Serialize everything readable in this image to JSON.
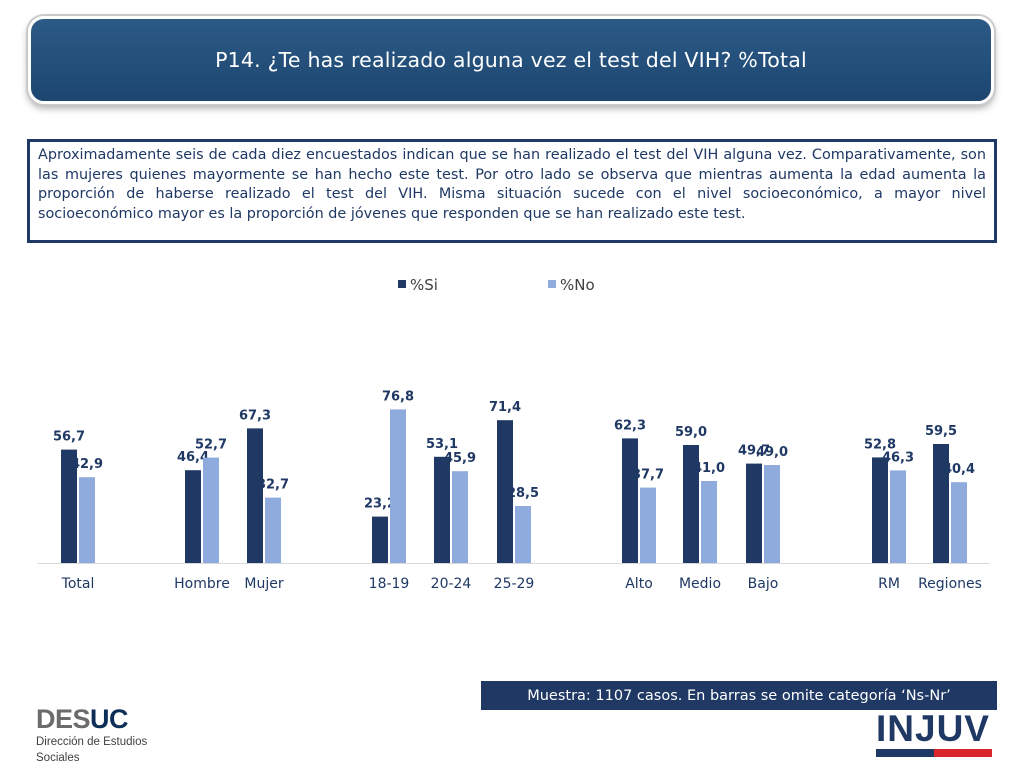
{
  "header": {
    "title": "P14. ¿Te has realizado alguna vez el test del VIH? %Total"
  },
  "summary": {
    "text": "Aproximadamente seis de cada diez encuestados indican que se han realizado el test del VIH alguna vez. Comparativamente, son las mujeres quienes mayormente se han hecho este test. Por otro lado se observa que mientras aumenta la edad aumenta la proporción de haberse realizado el test del VIH. Misma situación sucede con el nivel socioeconómico, a mayor nivel socioeconómico mayor es la proporción de jóvenes que responden que se han realizado este test."
  },
  "chart_data": {
    "type": "bar",
    "title": "",
    "xlabel": "",
    "ylabel": "",
    "ylim": [
      0,
      100
    ],
    "grid": false,
    "legend_position": "top-center",
    "categories": [
      "Total",
      "Hombre",
      "Mujer",
      "18-19",
      "20-24",
      "25-29",
      "Alto",
      "Medio",
      "Bajo",
      "RM",
      "Regiones"
    ],
    "series": [
      {
        "name": "%Si",
        "color": "#1f3864",
        "values": [
          56.7,
          46.4,
          67.3,
          23.2,
          53.1,
          71.4,
          62.3,
          59.0,
          49.7,
          52.8,
          59.5
        ],
        "labels": [
          "56,7",
          "46,4",
          "67,3",
          "23,2",
          "53,1",
          "71,4",
          "62,3",
          "59,0",
          "49,7",
          "52,8",
          "59,5"
        ]
      },
      {
        "name": "%No",
        "color": "#8faadc",
        "values": [
          42.9,
          52.7,
          32.7,
          76.8,
          45.9,
          28.5,
          37.7,
          41.0,
          49.0,
          46.3,
          40.4
        ],
        "labels": [
          "42,9",
          "52,7",
          "32,7",
          "76,8",
          "45,9",
          "28,5",
          "37,7",
          "41,0",
          "49,0",
          "46,3",
          "40,4"
        ]
      }
    ]
  },
  "footer": {
    "sample_note": "Muestra: 1107 casos. En barras se omite categoría ‘Ns-Nr’",
    "desuc_logo_a": "DES",
    "desuc_logo_b": "UC",
    "desuc_subtitle_1": "Dirección de Estudios",
    "desuc_subtitle_2": "Sociales",
    "injuv_logo": "INJUV"
  },
  "colors": {
    "primary": "#1f3864",
    "secondary": "#8faadc",
    "header": "#1c4670",
    "accent_red": "#d9262c"
  }
}
